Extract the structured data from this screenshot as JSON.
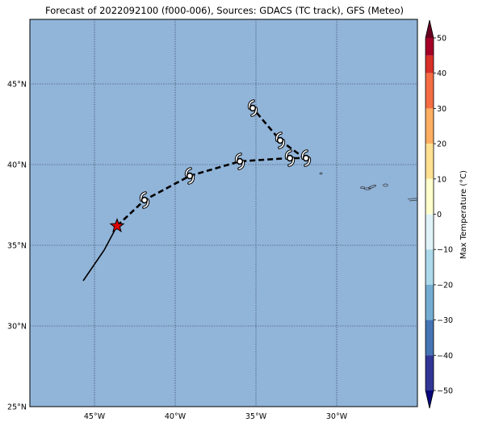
{
  "title": "Forecast of 2022092100 (f000-006), Sources: GDACS (TC track), GFS (Meteo)",
  "map": {
    "ocean_color": "#91b4d9",
    "lon_range": [
      -49,
      -25
    ],
    "lat_range": [
      25,
      49
    ],
    "grid": true,
    "lat_ticks": [
      {
        "value": 45,
        "label": "45°N"
      },
      {
        "value": 40,
        "label": "40°N"
      },
      {
        "value": 35,
        "label": "35°N"
      },
      {
        "value": 30,
        "label": "30°N"
      },
      {
        "value": 25,
        "label": "25°N"
      }
    ],
    "lon_ticks": [
      {
        "value": -45,
        "label": "45°W"
      },
      {
        "value": -40,
        "label": "40°W"
      },
      {
        "value": -35,
        "label": "35°W"
      },
      {
        "value": -30,
        "label": "30°W"
      }
    ]
  },
  "track": {
    "past": [
      [
        -45.7,
        32.8
      ],
      [
        -44.4,
        34.7
      ],
      [
        -43.6,
        36.2
      ]
    ],
    "forecast": [
      [
        -43.6,
        36.2
      ],
      [
        -41.9,
        37.8
      ],
      [
        -39.1,
        39.3
      ],
      [
        -36.0,
        40.2
      ],
      [
        -33.0,
        40.4
      ],
      [
        -32.0,
        40.4
      ],
      [
        -33.5,
        41.5
      ],
      [
        -35.2,
        43.5
      ]
    ],
    "current_position": [
      -43.6,
      36.2
    ],
    "current_marker_color": "#dd0000",
    "cyclone_symbols": [
      [
        -41.9,
        37.8
      ],
      [
        -39.1,
        39.3
      ],
      [
        -36.0,
        40.2
      ],
      [
        -32.9,
        40.4
      ],
      [
        -31.9,
        40.4
      ],
      [
        -33.5,
        41.5
      ],
      [
        -35.2,
        43.5
      ]
    ]
  },
  "colorbar": {
    "label": "Max Temperature (°C)",
    "ticks": [
      50,
      40,
      30,
      20,
      10,
      0,
      -10,
      -20,
      -30,
      -40,
      -50
    ],
    "colors": [
      "#67001f",
      "#b2182b",
      "#d6604d",
      "#f4a582",
      "#fddbc7",
      "#ffffff",
      "#d1e5f0",
      "#92c5de",
      "#4393c3",
      "#2166ac",
      "#053061",
      "#2a2a8c"
    ],
    "top_arrow_color": "#67001f",
    "bottom_arrow_color": "#08087a",
    "bands": [
      "#a50026",
      "#d73027",
      "#f46d43",
      "#fdae61",
      "#fee090",
      "#ffffcc",
      "#e0f3f8",
      "#abd9e9",
      "#74add1",
      "#4575b4",
      "#313695",
      "#232385"
    ]
  }
}
